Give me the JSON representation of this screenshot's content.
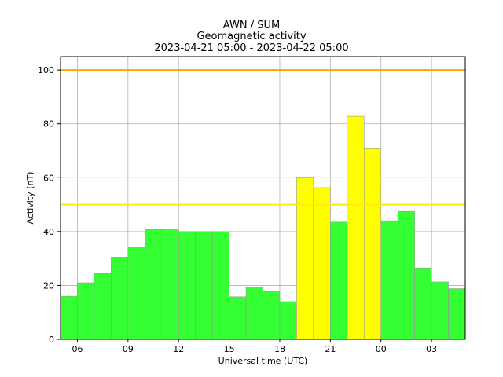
{
  "chart_data": {
    "type": "bar",
    "title": "AWN / SUM",
    "subtitle": "Geomagnetic activity",
    "period": "2023-04-21 05:00 - 2023-04-22 05:00",
    "xlabel": "Universal time (UTC)",
    "ylabel": "Activity (nT)",
    "ylim": [
      0,
      105
    ],
    "yticks": [
      0,
      20,
      40,
      60,
      80,
      100
    ],
    "xticks": [
      {
        "hour": 6,
        "label": "06"
      },
      {
        "hour": 9,
        "label": "09"
      },
      {
        "hour": 12,
        "label": "12"
      },
      {
        "hour": 15,
        "label": "15"
      },
      {
        "hour": 18,
        "label": "18"
      },
      {
        "hour": 21,
        "label": "21"
      },
      {
        "hour": 24,
        "label": "00"
      },
      {
        "hour": 27,
        "label": "03"
      }
    ],
    "xlim_hours": [
      5,
      29
    ],
    "grid": true,
    "bars": [
      {
        "start": "05:00",
        "value": 16,
        "color": "#33ff33"
      },
      {
        "start": "06:00",
        "value": 21,
        "color": "#33ff33"
      },
      {
        "start": "07:00",
        "value": 24.5,
        "color": "#33ff33"
      },
      {
        "start": "08:00",
        "value": 30.5,
        "color": "#33ff33"
      },
      {
        "start": "09:00",
        "value": 34,
        "color": "#33ff33"
      },
      {
        "start": "10:00",
        "value": 40.8,
        "color": "#33ff33"
      },
      {
        "start": "11:00",
        "value": 41,
        "color": "#33ff33"
      },
      {
        "start": "12:00",
        "value": 40,
        "color": "#33ff33"
      },
      {
        "start": "13:00",
        "value": 40,
        "color": "#33ff33"
      },
      {
        "start": "14:00",
        "value": 40,
        "color": "#33ff33"
      },
      {
        "start": "15:00",
        "value": 15.8,
        "color": "#33ff33"
      },
      {
        "start": "16:00",
        "value": 19.3,
        "color": "#33ff33"
      },
      {
        "start": "17:00",
        "value": 17.8,
        "color": "#33ff33"
      },
      {
        "start": "18:00",
        "value": 14,
        "color": "#33ff33"
      },
      {
        "start": "19:00",
        "value": 60.3,
        "color": "#ffff00"
      },
      {
        "start": "20:00",
        "value": 56.3,
        "color": "#ffff00"
      },
      {
        "start": "21:00",
        "value": 43.5,
        "color": "#33ff33"
      },
      {
        "start": "22:00",
        "value": 82.8,
        "color": "#ffff00"
      },
      {
        "start": "23:00",
        "value": 70.8,
        "color": "#ffff00"
      },
      {
        "start": "00:00",
        "value": 44,
        "color": "#33ff33"
      },
      {
        "start": "01:00",
        "value": 47.5,
        "color": "#33ff33"
      },
      {
        "start": "02:00",
        "value": 26.5,
        "color": "#33ff33"
      },
      {
        "start": "03:00",
        "value": 21.3,
        "color": "#33ff33"
      },
      {
        "start": "04:00",
        "value": 18.8,
        "color": "#33ff33"
      }
    ],
    "threshold_lines": [
      {
        "value": 50,
        "color": "#ffee00"
      },
      {
        "value": 100,
        "color": "#ffa500"
      }
    ]
  }
}
